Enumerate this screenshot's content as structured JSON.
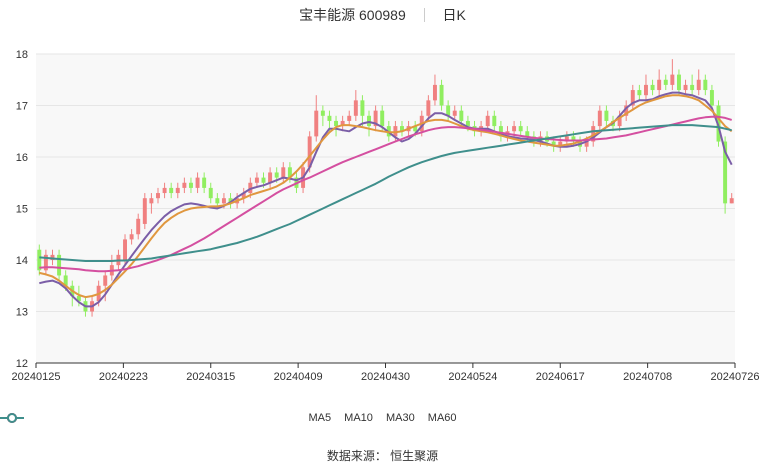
{
  "header": {
    "title": "宝丰能源 600989",
    "period": "日K"
  },
  "footer": {
    "source_label": "数据来源：",
    "source_value": "恒生聚源"
  },
  "colors": {
    "up": "#f08080",
    "down": "#90ee60",
    "ma5": "#7b5ea7",
    "ma10": "#e0973f",
    "ma30": "#d44fa0",
    "ma60": "#3f8f8c",
    "grid": "#e6e6e6",
    "axis": "#333333"
  },
  "chart_data": {
    "type": "candlestick",
    "x_tick_labels": [
      "20240125",
      "20240223",
      "20240315",
      "20240409",
      "20240430",
      "20240524",
      "20240617",
      "20240708",
      "20240726"
    ],
    "ylim": [
      12,
      18
    ],
    "y_ticks": [
      12,
      13,
      14,
      15,
      16,
      17,
      18
    ],
    "legend": [
      "MA5",
      "MA10",
      "MA30",
      "MA60"
    ],
    "candles": [
      [
        14.2,
        13.8,
        14.3,
        13.7
      ],
      [
        13.8,
        14.1,
        14.2,
        13.7
      ],
      [
        14.0,
        14.1,
        14.2,
        13.9
      ],
      [
        14.1,
        13.7,
        14.2,
        13.6
      ],
      [
        13.7,
        13.5,
        13.8,
        13.4
      ],
      [
        13.5,
        13.3,
        13.6,
        13.1
      ],
      [
        13.3,
        13.2,
        13.5,
        13.1
      ],
      [
        13.2,
        13.0,
        13.3,
        12.9
      ],
      [
        13.0,
        13.2,
        13.3,
        12.9
      ],
      [
        13.2,
        13.5,
        13.6,
        13.1
      ],
      [
        13.5,
        13.7,
        13.8,
        13.2
      ],
      [
        13.7,
        13.9,
        14.1,
        13.6
      ],
      [
        13.9,
        14.1,
        14.2,
        13.8
      ],
      [
        14.0,
        14.4,
        14.5,
        13.9
      ],
      [
        14.4,
        14.5,
        14.6,
        14.3
      ],
      [
        14.5,
        14.8,
        14.9,
        14.4
      ],
      [
        14.7,
        15.2,
        15.3,
        14.6
      ],
      [
        15.1,
        15.2,
        15.3,
        14.9
      ],
      [
        15.2,
        15.3,
        15.4,
        15.1
      ],
      [
        15.3,
        15.4,
        15.5,
        15.2
      ],
      [
        15.4,
        15.3,
        15.5,
        15.2
      ],
      [
        15.3,
        15.4,
        15.5,
        15.2
      ],
      [
        15.4,
        15.5,
        15.6,
        15.3
      ],
      [
        15.5,
        15.4,
        15.6,
        15.3
      ],
      [
        15.4,
        15.6,
        15.7,
        15.3
      ],
      [
        15.6,
        15.4,
        15.7,
        15.3
      ],
      [
        15.4,
        15.2,
        15.5,
        15.1
      ],
      [
        15.2,
        15.1,
        15.3,
        15.0
      ],
      [
        15.1,
        15.2,
        15.3,
        15.0
      ],
      [
        15.2,
        15.1,
        15.3,
        15.0
      ],
      [
        15.1,
        15.2,
        15.3,
        15.0
      ],
      [
        15.2,
        15.3,
        15.4,
        15.1
      ],
      [
        15.3,
        15.5,
        15.6,
        15.2
      ],
      [
        15.5,
        15.6,
        15.7,
        15.4
      ],
      [
        15.6,
        15.5,
        15.7,
        15.4
      ],
      [
        15.5,
        15.7,
        15.8,
        15.4
      ],
      [
        15.7,
        15.6,
        15.8,
        15.5
      ],
      [
        15.6,
        15.8,
        15.9,
        15.5
      ],
      [
        15.8,
        15.6,
        15.9,
        15.5
      ],
      [
        15.6,
        15.4,
        15.7,
        15.3
      ],
      [
        15.4,
        15.8,
        15.9,
        15.3
      ],
      [
        15.8,
        16.4,
        16.5,
        15.7
      ],
      [
        16.4,
        16.9,
        17.2,
        16.3
      ],
      [
        16.9,
        16.8,
        17.0,
        16.6
      ],
      [
        16.8,
        16.7,
        16.9,
        16.5
      ],
      [
        16.7,
        16.6,
        16.8,
        16.4
      ],
      [
        16.6,
        16.7,
        16.8,
        16.5
      ],
      [
        16.7,
        16.8,
        16.9,
        16.6
      ],
      [
        16.8,
        17.1,
        17.3,
        16.7
      ],
      [
        17.1,
        16.8,
        17.2,
        16.6
      ],
      [
        16.8,
        16.6,
        16.9,
        16.4
      ],
      [
        16.6,
        16.9,
        17.0,
        16.5
      ],
      [
        16.9,
        16.6,
        17.0,
        16.5
      ],
      [
        16.6,
        16.4,
        16.7,
        16.3
      ],
      [
        16.4,
        16.6,
        16.7,
        16.3
      ],
      [
        16.6,
        16.5,
        16.7,
        16.4
      ],
      [
        16.5,
        16.6,
        16.7,
        16.4
      ],
      [
        16.6,
        16.5,
        16.7,
        16.4
      ],
      [
        16.5,
        16.8,
        16.9,
        16.4
      ],
      [
        16.8,
        17.1,
        17.2,
        16.7
      ],
      [
        17.1,
        17.4,
        17.6,
        17.0
      ],
      [
        17.4,
        17.0,
        17.5,
        16.9
      ],
      [
        17.0,
        16.8,
        17.1,
        16.7
      ],
      [
        16.8,
        16.9,
        17.0,
        16.7
      ],
      [
        16.9,
        16.7,
        17.0,
        16.6
      ],
      [
        16.7,
        16.6,
        16.8,
        16.5
      ],
      [
        16.6,
        16.5,
        16.7,
        16.4
      ],
      [
        16.5,
        16.6,
        16.7,
        16.4
      ],
      [
        16.6,
        16.8,
        16.9,
        16.5
      ],
      [
        16.8,
        16.6,
        16.9,
        16.5
      ],
      [
        16.6,
        16.4,
        16.7,
        16.3
      ],
      [
        16.4,
        16.5,
        16.6,
        16.3
      ],
      [
        16.5,
        16.6,
        16.7,
        16.4
      ],
      [
        16.6,
        16.5,
        16.7,
        16.4
      ],
      [
        16.5,
        16.4,
        16.6,
        16.3
      ],
      [
        16.4,
        16.3,
        16.5,
        16.2
      ],
      [
        16.3,
        16.4,
        16.5,
        16.2
      ],
      [
        16.4,
        16.3,
        16.5,
        16.2
      ],
      [
        16.3,
        16.2,
        16.4,
        16.1
      ],
      [
        16.2,
        16.3,
        16.4,
        16.1
      ],
      [
        16.3,
        16.4,
        16.5,
        16.2
      ],
      [
        16.4,
        16.3,
        16.5,
        16.2
      ],
      [
        16.3,
        16.2,
        16.4,
        16.1
      ],
      [
        16.2,
        16.3,
        16.4,
        16.1
      ],
      [
        16.3,
        16.6,
        16.7,
        16.2
      ],
      [
        16.6,
        16.9,
        17.0,
        16.5
      ],
      [
        16.9,
        16.7,
        17.0,
        16.6
      ],
      [
        16.7,
        16.6,
        16.8,
        16.5
      ],
      [
        16.6,
        16.8,
        16.9,
        16.5
      ],
      [
        16.8,
        17.0,
        17.1,
        16.7
      ],
      [
        17.0,
        17.3,
        17.4,
        16.9
      ],
      [
        17.3,
        17.2,
        17.4,
        17.1
      ],
      [
        17.2,
        17.4,
        17.6,
        17.1
      ],
      [
        17.4,
        17.3,
        17.5,
        17.2
      ],
      [
        17.3,
        17.5,
        17.7,
        17.2
      ],
      [
        17.5,
        17.4,
        17.6,
        17.3
      ],
      [
        17.4,
        17.6,
        17.9,
        17.3
      ],
      [
        17.6,
        17.3,
        17.7,
        17.2
      ],
      [
        17.3,
        17.4,
        17.5,
        17.2
      ],
      [
        17.4,
        17.3,
        17.6,
        17.2
      ],
      [
        17.3,
        17.5,
        17.7,
        17.2
      ],
      [
        17.5,
        17.3,
        17.6,
        17.2
      ],
      [
        17.3,
        17.0,
        17.4,
        16.9
      ],
      [
        17.0,
        16.3,
        17.1,
        16.2
      ],
      [
        16.3,
        15.1,
        16.4,
        14.9
      ],
      [
        15.1,
        15.2,
        15.3,
        15.1
      ]
    ],
    "series": [
      {
        "name": "MA5",
        "values": [
          13.55,
          13.58,
          13.6,
          13.55,
          13.45,
          13.3,
          13.18,
          13.1,
          13.1,
          13.18,
          13.33,
          13.52,
          13.72,
          13.9,
          14.08,
          14.25,
          14.42,
          14.58,
          14.72,
          14.85,
          14.95,
          15.02,
          15.08,
          15.1,
          15.08,
          15.05,
          15.02,
          15.0,
          15.05,
          15.12,
          15.22,
          15.3,
          15.38,
          15.42,
          15.45,
          15.5,
          15.55,
          15.6,
          15.58,
          15.55,
          15.6,
          15.8,
          16.1,
          16.38,
          16.55,
          16.55,
          16.52,
          16.5,
          16.58,
          16.65,
          16.68,
          16.65,
          16.58,
          16.48,
          16.38,
          16.3,
          16.35,
          16.45,
          16.6,
          16.75,
          16.85,
          16.85,
          16.8,
          16.72,
          16.65,
          16.58,
          16.55,
          16.55,
          16.55,
          16.5,
          16.45,
          16.4,
          16.38,
          16.36,
          16.35,
          16.33,
          16.3,
          16.26,
          16.22,
          16.2,
          16.2,
          16.22,
          16.25,
          16.3,
          16.38,
          16.48,
          16.58,
          16.66,
          16.8,
          16.95,
          17.05,
          17.1,
          17.1,
          17.12,
          17.18,
          17.22,
          17.25,
          17.25,
          17.22,
          17.2,
          17.15,
          17.1,
          16.95,
          16.6,
          16.1,
          15.85
        ]
      },
      {
        "name": "MA10",
        "values": [
          13.75,
          13.72,
          13.68,
          13.6,
          13.5,
          13.4,
          13.32,
          13.28,
          13.3,
          13.34,
          13.42,
          13.52,
          13.65,
          13.78,
          13.92,
          14.08,
          14.25,
          14.42,
          14.58,
          14.72,
          14.82,
          14.9,
          14.96,
          15.0,
          15.02,
          15.03,
          15.04,
          15.04,
          15.06,
          15.1,
          15.15,
          15.2,
          15.26,
          15.3,
          15.34,
          15.38,
          15.43,
          15.5,
          15.6,
          15.72,
          15.86,
          16.02,
          16.18,
          16.34,
          16.48,
          16.58,
          16.62,
          16.62,
          16.6,
          16.58,
          16.55,
          16.52,
          16.5,
          16.48,
          16.48,
          16.5,
          16.55,
          16.6,
          16.65,
          16.7,
          16.72,
          16.72,
          16.7,
          16.65,
          16.6,
          16.55,
          16.52,
          16.5,
          16.48,
          16.45,
          16.42,
          16.38,
          16.35,
          16.32,
          16.3,
          16.28,
          16.26,
          16.24,
          16.22,
          16.22,
          16.24,
          16.26,
          16.3,
          16.36,
          16.42,
          16.5,
          16.58,
          16.68,
          16.76,
          16.84,
          16.92,
          17.0,
          17.06,
          17.1,
          17.14,
          17.18,
          17.2,
          17.2,
          17.18,
          17.15,
          17.1,
          17.0,
          16.9,
          16.75,
          16.6,
          16.5
        ]
      },
      {
        "name": "MA30",
        "values": [
          13.85,
          13.86,
          13.86,
          13.85,
          13.84,
          13.83,
          13.82,
          13.8,
          13.79,
          13.78,
          13.78,
          13.79,
          13.8,
          13.82,
          13.85,
          13.88,
          13.92,
          13.96,
          14.0,
          14.05,
          14.1,
          14.16,
          14.22,
          14.28,
          14.35,
          14.42,
          14.5,
          14.58,
          14.66,
          14.74,
          14.82,
          14.9,
          14.98,
          15.06,
          15.14,
          15.22,
          15.3,
          15.37,
          15.43,
          15.49,
          15.55,
          15.6,
          15.66,
          15.72,
          15.78,
          15.84,
          15.9,
          15.95,
          16.0,
          16.05,
          16.1,
          16.15,
          16.2,
          16.25,
          16.3,
          16.35,
          16.4,
          16.44,
          16.48,
          16.52,
          16.55,
          16.57,
          16.58,
          16.58,
          16.57,
          16.56,
          16.55,
          16.53,
          16.51,
          16.49,
          16.47,
          16.45,
          16.43,
          16.41,
          16.39,
          16.37,
          16.36,
          16.35,
          16.34,
          16.33,
          16.32,
          16.32,
          16.32,
          16.33,
          16.34,
          16.35,
          16.36,
          16.38,
          16.4,
          16.42,
          16.45,
          16.48,
          16.51,
          16.54,
          16.57,
          16.6,
          16.63,
          16.66,
          16.69,
          16.72,
          16.75,
          16.77,
          16.78,
          16.78,
          16.76,
          16.72
        ]
      },
      {
        "name": "MA60",
        "values": [
          14.05,
          14.04,
          14.03,
          14.02,
          14.01,
          14.0,
          13.99,
          13.98,
          13.98,
          13.98,
          13.98,
          13.98,
          13.99,
          13.99,
          14.0,
          14.01,
          14.02,
          14.03,
          14.05,
          14.07,
          14.09,
          14.11,
          14.13,
          14.15,
          14.17,
          14.19,
          14.21,
          14.24,
          14.27,
          14.3,
          14.33,
          14.37,
          14.41,
          14.45,
          14.5,
          14.55,
          14.6,
          14.65,
          14.7,
          14.76,
          14.82,
          14.88,
          14.94,
          15.0,
          15.06,
          15.12,
          15.18,
          15.24,
          15.3,
          15.36,
          15.42,
          15.48,
          15.55,
          15.62,
          15.68,
          15.74,
          15.8,
          15.85,
          15.9,
          15.94,
          15.98,
          16.02,
          16.05,
          16.08,
          16.1,
          16.12,
          16.14,
          16.16,
          16.18,
          16.2,
          16.22,
          16.24,
          16.26,
          16.28,
          16.3,
          16.32,
          16.34,
          16.36,
          16.38,
          16.4,
          16.42,
          16.44,
          16.46,
          16.48,
          16.5,
          16.51,
          16.52,
          16.53,
          16.54,
          16.55,
          16.56,
          16.57,
          16.58,
          16.59,
          16.6,
          16.61,
          16.62,
          16.62,
          16.62,
          16.62,
          16.61,
          16.6,
          16.59,
          16.58,
          16.55,
          16.52
        ]
      }
    ]
  }
}
